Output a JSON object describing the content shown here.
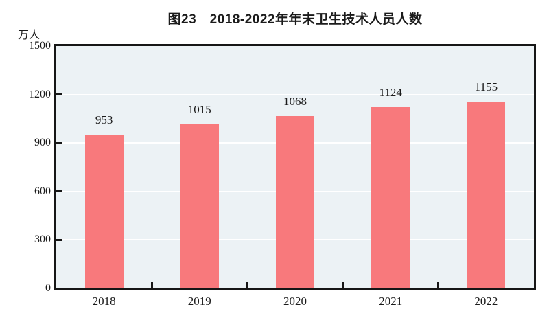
{
  "page": {
    "background": "#FFFFFF"
  },
  "chart_data": {
    "type": "bar",
    "title": "图23　2018-2022年年末卫生技术人员人数",
    "unit_label": "万人",
    "categories": [
      "2018",
      "2019",
      "2020",
      "2021",
      "2022"
    ],
    "values": [
      953,
      1015,
      1068,
      1124,
      1155
    ],
    "data_labels": [
      "953",
      "1015",
      "1068",
      "1124",
      "1155"
    ],
    "xlabel": "",
    "ylabel": "万人",
    "ylim": [
      0,
      1500
    ],
    "yticks": [
      0,
      300,
      600,
      900,
      1200,
      1500
    ],
    "grid": "horizontal",
    "legend_position": "none",
    "colors": {
      "bar_fill": "#F8797C",
      "plot_background": "#ECF2F5",
      "gridline": "#FFFFFF",
      "axis": "#161616",
      "text": "#1B1B1B",
      "page_background": "#FFFFFF"
    }
  }
}
